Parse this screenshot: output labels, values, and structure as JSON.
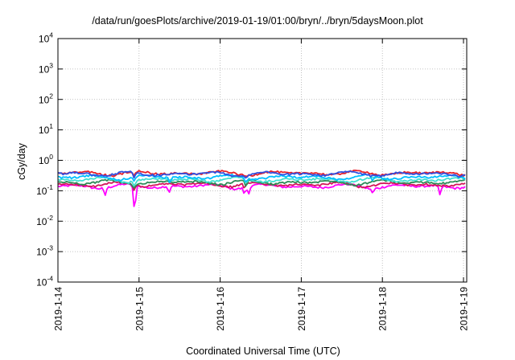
{
  "chart_data": {
    "type": "line",
    "title": "/data/run/goesPlots/archive/2019-01-19/01:00/bryn/../bryn/5daysMoon.plot",
    "xlabel": "Coordinated Universal Time (UTC)",
    "ylabel": "cGy/day",
    "yscale": "log",
    "ylim": [
      0.0001,
      10000
    ],
    "xlim": [
      "2019-01-14",
      "2019-01-19 01:00"
    ],
    "grid": true,
    "x_ticks": [
      "2019-1-14",
      "2019-1-15",
      "2019-1-16",
      "2019-1-17",
      "2019-1-18",
      "2019-1-19"
    ],
    "y_ticks": [
      {
        "base": "10",
        "exp": "-4",
        "value": 0.0001
      },
      {
        "base": "10",
        "exp": "-3",
        "value": 0.001
      },
      {
        "base": "10",
        "exp": "-2",
        "value": 0.01
      },
      {
        "base": "10",
        "exp": "-1",
        "value": 0.1
      },
      {
        "base": "10",
        "exp": "0",
        "value": 1
      },
      {
        "base": "10",
        "exp": "1",
        "value": 10
      },
      {
        "base": "10",
        "exp": "2",
        "value": 100
      },
      {
        "base": "10",
        "exp": "3",
        "value": 1000
      },
      {
        "base": "10",
        "exp": "4",
        "value": 10000
      }
    ],
    "series": [
      {
        "color": "#ff00ff",
        "level": 0.14,
        "dips": [
          [
            0.58,
            0.065
          ],
          [
            0.94,
            0.026
          ],
          [
            0.95,
            0.026
          ],
          [
            1.37,
            0.08
          ],
          [
            2.3,
            0.07
          ],
          [
            2.35,
            0.07
          ],
          [
            3.88,
            0.08
          ],
          [
            4.71,
            0.07
          ]
        ]
      },
      {
        "color": "#d4145a",
        "level": 0.16,
        "dips": [
          [
            0.94,
            0.1
          ],
          [
            2.3,
            0.11
          ]
        ]
      },
      {
        "color": "#2e8b57",
        "level": 0.19,
        "dips": [
          [
            0.94,
            0.12
          ],
          [
            2.32,
            0.12
          ]
        ]
      },
      {
        "color": "#40e0d0",
        "level": 0.23,
        "dips": [
          [
            0.94,
            0.14
          ],
          [
            2.32,
            0.15
          ]
        ]
      },
      {
        "color": "#00bfff",
        "level": 0.28,
        "dips": [
          [
            0.94,
            0.2
          ],
          [
            1.38,
            0.17
          ],
          [
            2.32,
            0.18
          ],
          [
            3.88,
            0.2
          ]
        ]
      },
      {
        "color": "#e8202a",
        "level": 0.38,
        "dips": [
          [
            0.94,
            0.3
          ],
          [
            2.32,
            0.3
          ]
        ]
      },
      {
        "color": "#3050e0",
        "level": 0.36,
        "dips": [
          [
            0.94,
            0.25
          ],
          [
            2.32,
            0.25
          ]
        ]
      }
    ]
  }
}
